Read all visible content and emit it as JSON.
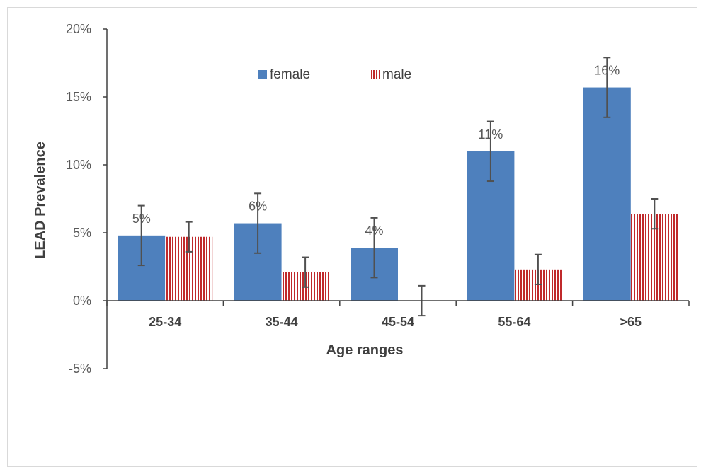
{
  "chart_data": {
    "type": "bar",
    "title": "",
    "xlabel": "Age ranges",
    "ylabel": "LEAD Prevalence",
    "ylim": [
      -0.05,
      0.2
    ],
    "yticks": [
      -0.05,
      0,
      0.05,
      0.1,
      0.15,
      0.2
    ],
    "ytick_labels": [
      "-5%",
      "0%",
      "5%",
      "10%",
      "15%",
      "20%"
    ],
    "categories": [
      "25-34",
      "35-44",
      "45-54",
      "55-64",
      ">65"
    ],
    "series": [
      {
        "name": "female",
        "color": "#4e80bd",
        "pattern": "solid",
        "values": [
          0.048,
          0.057,
          0.039,
          0.11,
          0.157
        ],
        "error": [
          0.022,
          0.022,
          0.022,
          0.022,
          0.022
        ],
        "data_labels": [
          "5%",
          "6%",
          "4%",
          "11%",
          "16%"
        ]
      },
      {
        "name": "male",
        "color": "#c0292b",
        "pattern": "vertical-stripes",
        "values": [
          0.047,
          0.021,
          0.0,
          0.023,
          0.064
        ],
        "error": [
          0.011,
          0.011,
          0.011,
          0.011,
          0.011
        ],
        "data_labels": []
      }
    ],
    "legend_position": "top-center",
    "grid": false
  }
}
